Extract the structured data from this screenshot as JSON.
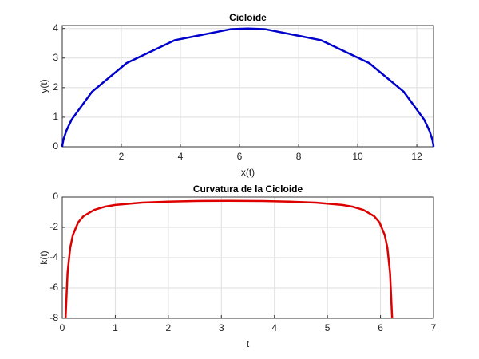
{
  "chart_data": [
    {
      "type": "line",
      "title": "Cicloide",
      "xlabel": "x(t)",
      "ylabel": "y(t)",
      "x": [
        0,
        0.0027,
        0.009,
        0.0411,
        0.1367,
        0.317,
        1.005,
        2.181,
        3.803,
        5.718,
        6.283,
        6.848,
        8.763,
        10.385,
        11.561,
        12.249,
        12.429,
        12.525,
        12.557,
        12.563,
        12.566
      ],
      "series": [
        {
          "name": "y(t)",
          "color": "#0000cc",
          "values": [
            0,
            0.0399,
            0.089,
            0.245,
            0.537,
            0.919,
            1.859,
            2.832,
            3.602,
            3.98,
            4,
            3.98,
            3.602,
            2.832,
            1.859,
            0.919,
            0.537,
            0.245,
            0.089,
            0.0399,
            0
          ]
        }
      ],
      "xlim": [
        0,
        12.566
      ],
      "xticks": [
        2,
        4,
        6,
        8,
        10,
        12
      ],
      "ylim": [
        0,
        4.1
      ],
      "yticks": [
        0,
        1,
        2,
        3,
        4
      ],
      "grid": true
    },
    {
      "type": "line",
      "title": "Curvatura de la Cicloide",
      "xlabel": "t",
      "ylabel": "k(t)",
      "x": [
        0.0625,
        0.1,
        0.15,
        0.2,
        0.3,
        0.4,
        0.6,
        0.8,
        1.0,
        1.5,
        2.0,
        2.5,
        3.14,
        3.78,
        4.28,
        4.78,
        5.28,
        5.48,
        5.68,
        5.88,
        5.98,
        6.08,
        6.13,
        6.18,
        6.22
      ],
      "series": [
        {
          "name": "k(t)",
          "color": "#dd0000",
          "values": [
            -8.0,
            -5.0,
            -3.34,
            -2.5,
            -1.67,
            -1.26,
            -0.85,
            -0.64,
            -0.52,
            -0.37,
            -0.3,
            -0.26,
            -0.25,
            -0.26,
            -0.3,
            -0.37,
            -0.52,
            -0.64,
            -0.85,
            -1.26,
            -1.67,
            -2.5,
            -3.34,
            -5.0,
            -8.0
          ]
        }
      ],
      "xlim": [
        0,
        7
      ],
      "xticks": [
        0,
        1,
        2,
        3,
        4,
        5,
        6,
        7
      ],
      "ylim": [
        -8,
        0
      ],
      "yticks": [
        -8,
        -6,
        -4,
        -2,
        0
      ],
      "grid": true
    }
  ]
}
